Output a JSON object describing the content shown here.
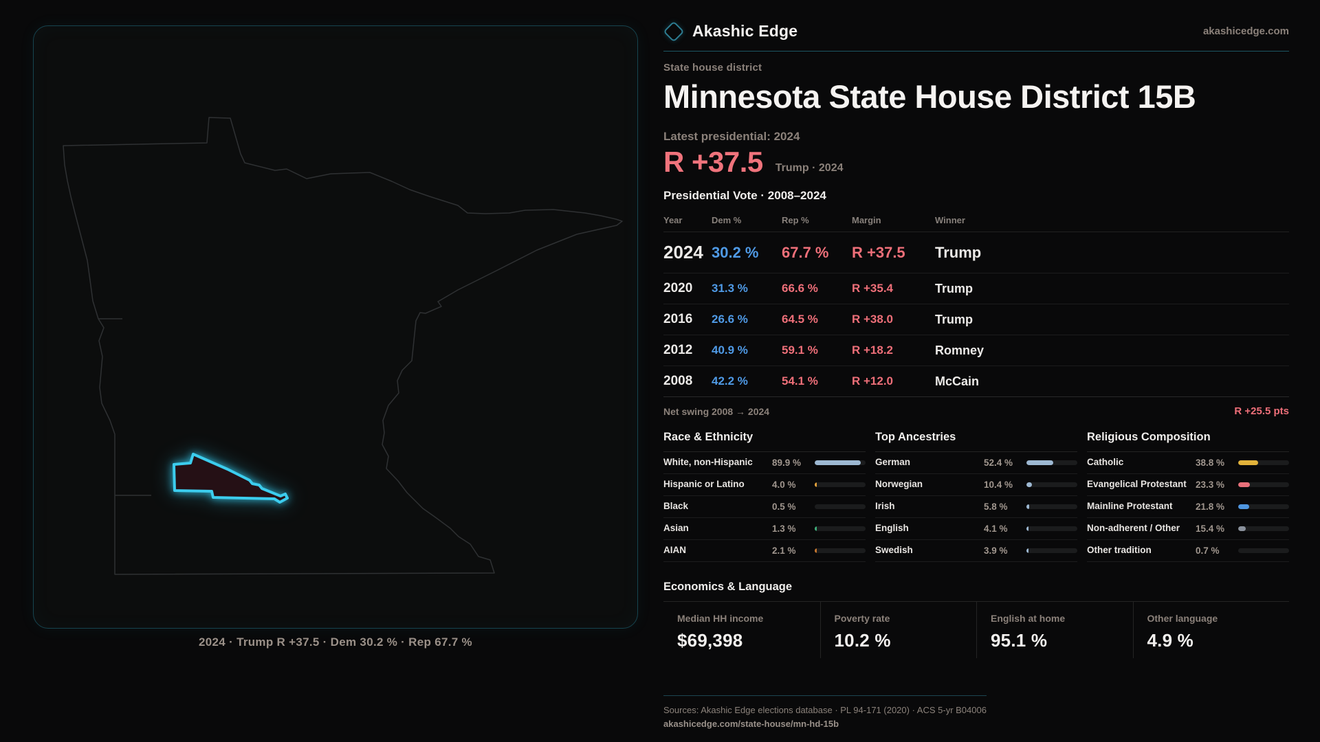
{
  "brand": {
    "name": "Akashic Edge",
    "domain": "akashicedge.com"
  },
  "header": {
    "kicker": "State house district",
    "title": "Minnesota State House District 15B"
  },
  "map": {
    "caption": "2024 · Trump R +37.5 · Dem 30.2 % · Rep 67.7 %"
  },
  "latest": {
    "label": "Latest presidential: 2024",
    "margin": "R +37.5",
    "sub": "Trump · 2024"
  },
  "vote_table": {
    "title": "Presidential Vote · 2008–2024",
    "columns": [
      "Year",
      "Dem %",
      "Rep %",
      "Margin",
      "Winner"
    ],
    "rows": [
      {
        "year": "2024",
        "dem": "30.2 %",
        "rep": "67.7 %",
        "margin": "R +37.5",
        "winner": "Trump",
        "highlight": true
      },
      {
        "year": "2020",
        "dem": "31.3 %",
        "rep": "66.6 %",
        "margin": "R +35.4",
        "winner": "Trump",
        "highlight": false
      },
      {
        "year": "2016",
        "dem": "26.6 %",
        "rep": "64.5 %",
        "margin": "R +38.0",
        "winner": "Trump",
        "highlight": false
      },
      {
        "year": "2012",
        "dem": "40.9 %",
        "rep": "59.1 %",
        "margin": "R +18.2",
        "winner": "Romney",
        "highlight": false
      },
      {
        "year": "2008",
        "dem": "42.2 %",
        "rep": "54.1 %",
        "margin": "R +12.0",
        "winner": "McCain",
        "highlight": false
      }
    ],
    "net_swing_label": "Net swing 2008 → 2024",
    "net_swing_value": "R +25.5 pts"
  },
  "chart_data": [
    {
      "type": "table",
      "title": "Presidential Vote · 2008–2024",
      "columns": [
        "Year",
        "Dem %",
        "Rep %",
        "Margin",
        "Winner"
      ],
      "rows": [
        [
          2024,
          30.2,
          67.7,
          "R +37.5",
          "Trump"
        ],
        [
          2020,
          31.3,
          66.6,
          "R +35.4",
          "Trump"
        ],
        [
          2016,
          26.6,
          64.5,
          "R +38.0",
          "Trump"
        ],
        [
          2012,
          40.9,
          59.1,
          "R +18.2",
          "Romney"
        ],
        [
          2008,
          42.2,
          54.1,
          "R +12.0",
          "McCain"
        ]
      ]
    },
    {
      "type": "bar",
      "title": "Race & Ethnicity",
      "categories": [
        "White, non-Hispanic",
        "Hispanic or Latino",
        "Black",
        "Asian",
        "AIAN"
      ],
      "values": [
        89.9,
        4.0,
        0.5,
        1.3,
        2.1
      ],
      "xlim": [
        0,
        100
      ]
    },
    {
      "type": "bar",
      "title": "Top Ancestries",
      "categories": [
        "German",
        "Norwegian",
        "Irish",
        "English",
        "Swedish"
      ],
      "values": [
        52.4,
        10.4,
        5.8,
        4.1,
        3.9
      ],
      "xlim": [
        0,
        100
      ]
    },
    {
      "type": "bar",
      "title": "Religious Composition",
      "categories": [
        "Catholic",
        "Evangelical Protestant",
        "Mainline Protestant",
        "Non-adherent / Other",
        "Other tradition"
      ],
      "values": [
        38.8,
        23.3,
        21.8,
        15.4,
        0.7
      ],
      "xlim": [
        0,
        100
      ]
    }
  ],
  "demographics": [
    {
      "title": "Race & Ethnicity",
      "rows": [
        {
          "label": "White, non-Hispanic",
          "value": "89.9 %",
          "pct": 89.9,
          "color": "#9db8d2"
        },
        {
          "label": "Hispanic or Latino",
          "value": "4.0 %",
          "pct": 4.0,
          "color": "#e5a33c"
        },
        {
          "label": "Black",
          "value": "0.5 %",
          "pct": 0.5,
          "color": "#8a8f98"
        },
        {
          "label": "Asian",
          "value": "1.3 %",
          "pct": 1.3,
          "color": "#3fae7a"
        },
        {
          "label": "AIAN",
          "value": "2.1 %",
          "pct": 2.1,
          "color": "#c5762f"
        }
      ]
    },
    {
      "title": "Top Ancestries",
      "rows": [
        {
          "label": "German",
          "value": "52.4 %",
          "pct": 52.4,
          "color": "#9db8d2"
        },
        {
          "label": "Norwegian",
          "value": "10.4 %",
          "pct": 10.4,
          "color": "#9db8d2"
        },
        {
          "label": "Irish",
          "value": "5.8 %",
          "pct": 5.8,
          "color": "#9db8d2"
        },
        {
          "label": "English",
          "value": "4.1 %",
          "pct": 4.1,
          "color": "#9db8d2"
        },
        {
          "label": "Swedish",
          "value": "3.9 %",
          "pct": 3.9,
          "color": "#9db8d2"
        }
      ]
    },
    {
      "title": "Religious Composition",
      "rows": [
        {
          "label": "Catholic",
          "value": "38.8 %",
          "pct": 38.8,
          "color": "#e2b33b"
        },
        {
          "label": "Evangelical Protestant",
          "value": "23.3 %",
          "pct": 23.3,
          "color": "#e8707a"
        },
        {
          "label": "Mainline Protestant",
          "value": "21.8 %",
          "pct": 21.8,
          "color": "#4f96e0"
        },
        {
          "label": "Non-adherent / Other",
          "value": "15.4 %",
          "pct": 15.4,
          "color": "#8a919c"
        },
        {
          "label": "Other tradition",
          "value": "0.7 %",
          "pct": 0.7,
          "color": "#8a919c"
        }
      ]
    }
  ],
  "economics": {
    "title": "Economics & Language",
    "stats": [
      {
        "label": "Median HH income",
        "value": "$69,398"
      },
      {
        "label": "Poverty rate",
        "value": "10.2 %"
      },
      {
        "label": "English at home",
        "value": "95.1 %"
      },
      {
        "label": "Other language",
        "value": "4.9 %"
      }
    ]
  },
  "footer": {
    "sources": "Sources: Akashic Edge elections database · PL 94-171 (2020) · ACS 5-yr B04006",
    "permalink": "akashicedge.com/state-house/mn-hd-15b"
  },
  "colors": {
    "dem_blue": "#4f9ae6",
    "rep_red": "#ee6f79",
    "district_cyan": "#3ccdee",
    "panel_border_teal": "#16444f",
    "divider_teal": "#1d5663"
  }
}
